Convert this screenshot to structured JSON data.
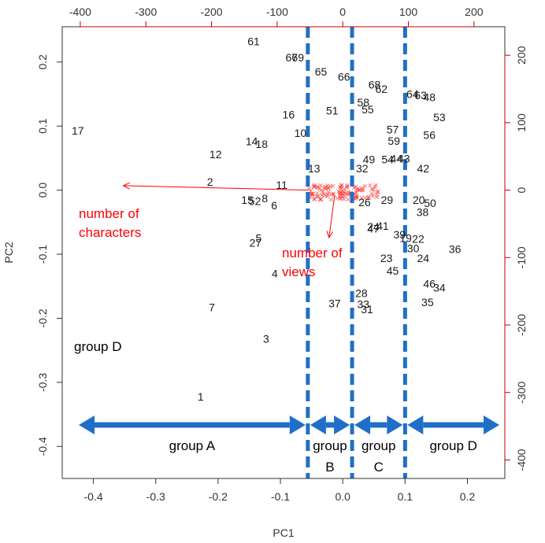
{
  "chart_data": {
    "type": "scatter",
    "title": "",
    "xlabel": "PC1",
    "ylabel": "PC2",
    "xlim": [
      -0.45,
      0.26
    ],
    "ylim": [
      -0.45,
      0.255
    ],
    "x_ticks": [
      -0.4,
      -0.3,
      -0.2,
      -0.1,
      0.0,
      0.1,
      0.2
    ],
    "x_tick_labels": [
      "-0.4",
      "-0.3",
      "-0.2",
      "-0.1",
      "0.0",
      "0.1",
      "0.2"
    ],
    "y_ticks": [
      0.2,
      0.1,
      0.0,
      -0.1,
      -0.2,
      -0.3,
      -0.4
    ],
    "y_tick_labels": [
      "0.2",
      "0.1",
      "0.0",
      "-0.1",
      "-0.2",
      "-0.3",
      "-0.4"
    ],
    "secondary_axis": {
      "scale_factor": 950,
      "ticks": [
        -400,
        -300,
        -200,
        -100,
        0,
        100,
        200
      ],
      "top_tick_labels": [
        "-400",
        "-300",
        "-200",
        "-100",
        "0",
        "100",
        "200"
      ],
      "right_ticks": [
        200,
        100,
        0,
        -100,
        -200,
        -300,
        -400
      ],
      "right_tick_labels": [
        "200",
        "100",
        "0",
        "-100",
        "-200",
        "-300",
        "-400"
      ],
      "color": "#c00000"
    },
    "point_color": "#1a1a1a",
    "points": [
      {
        "label": "61",
        "x": -0.143,
        "y": 0.232
      },
      {
        "label": "67",
        "x": -0.082,
        "y": 0.207
      },
      {
        "label": "69",
        "x": -0.072,
        "y": 0.207
      },
      {
        "label": "65",
        "x": -0.035,
        "y": 0.185
      },
      {
        "label": "66",
        "x": 0.002,
        "y": 0.177
      },
      {
        "label": "68",
        "x": 0.051,
        "y": 0.165
      },
      {
        "label": "62",
        "x": 0.062,
        "y": 0.158
      },
      {
        "label": "64",
        "x": 0.112,
        "y": 0.15
      },
      {
        "label": "63",
        "x": 0.125,
        "y": 0.148
      },
      {
        "label": "48",
        "x": 0.139,
        "y": 0.145
      },
      {
        "label": "58",
        "x": 0.033,
        "y": 0.137
      },
      {
        "label": "55",
        "x": 0.04,
        "y": 0.126
      },
      {
        "label": "51",
        "x": -0.017,
        "y": 0.124
      },
      {
        "label": "16",
        "x": -0.087,
        "y": 0.118
      },
      {
        "label": "53",
        "x": 0.155,
        "y": 0.114
      },
      {
        "label": "57",
        "x": 0.08,
        "y": 0.095
      },
      {
        "label": "56",
        "x": 0.139,
        "y": 0.086
      },
      {
        "label": "10",
        "x": -0.068,
        "y": 0.089
      },
      {
        "label": "59",
        "x": 0.082,
        "y": 0.077
      },
      {
        "label": "17",
        "x": -0.425,
        "y": 0.093
      },
      {
        "label": "14",
        "x": -0.146,
        "y": 0.076
      },
      {
        "label": "18",
        "x": -0.13,
        "y": 0.072
      },
      {
        "label": "12",
        "x": -0.204,
        "y": 0.056
      },
      {
        "label": "49",
        "x": 0.042,
        "y": 0.048
      },
      {
        "label": "54",
        "x": 0.072,
        "y": 0.048
      },
      {
        "label": "44",
        "x": 0.086,
        "y": 0.049
      },
      {
        "label": "43",
        "x": 0.098,
        "y": 0.049
      },
      {
        "label": "13",
        "x": -0.046,
        "y": 0.034
      },
      {
        "label": "32",
        "x": 0.031,
        "y": 0.034
      },
      {
        "label": "42",
        "x": 0.129,
        "y": 0.034
      },
      {
        "label": "2",
        "x": -0.213,
        "y": 0.013
      },
      {
        "label": "11",
        "x": -0.098,
        "y": 0.008
      },
      {
        "label": "26",
        "x": 0.035,
        "y": -0.019
      },
      {
        "label": "29",
        "x": 0.071,
        "y": -0.015
      },
      {
        "label": "20",
        "x": 0.122,
        "y": -0.015
      },
      {
        "label": "50",
        "x": 0.14,
        "y": -0.02
      },
      {
        "label": "15",
        "x": -0.153,
        "y": -0.015
      },
      {
        "label": "52",
        "x": -0.141,
        "y": -0.017
      },
      {
        "label": "8",
        "x": -0.125,
        "y": -0.013
      },
      {
        "label": "6",
        "x": -0.11,
        "y": -0.024
      },
      {
        "label": "38",
        "x": 0.128,
        "y": -0.034
      },
      {
        "label": "24",
        "x": 0.049,
        "y": -0.057
      },
      {
        "label": "47",
        "x": 0.049,
        "y": -0.06
      },
      {
        "label": "41",
        "x": 0.064,
        "y": -0.056
      },
      {
        "label": "39",
        "x": 0.091,
        "y": -0.069
      },
      {
        "label": "19",
        "x": 0.101,
        "y": -0.075
      },
      {
        "label": "22",
        "x": 0.121,
        "y": -0.076
      },
      {
        "label": "30",
        "x": 0.113,
        "y": -0.091
      },
      {
        "label": "5",
        "x": -0.135,
        "y": -0.075
      },
      {
        "label": "27",
        "x": -0.14,
        "y": -0.082
      },
      {
        "label": "36",
        "x": 0.18,
        "y": -0.092
      },
      {
        "label": "24",
        "x": 0.129,
        "y": -0.106
      },
      {
        "label": "23",
        "x": 0.07,
        "y": -0.106
      },
      {
        "label": "45",
        "x": 0.08,
        "y": -0.126
      },
      {
        "label": "4",
        "x": -0.109,
        "y": -0.13
      },
      {
        "label": "46",
        "x": 0.139,
        "y": -0.146
      },
      {
        "label": "34",
        "x": 0.155,
        "y": -0.152
      },
      {
        "label": "28",
        "x": 0.03,
        "y": -0.161
      },
      {
        "label": "35",
        "x": 0.136,
        "y": -0.175
      },
      {
        "label": "37",
        "x": -0.013,
        "y": -0.177
      },
      {
        "label": "33",
        "x": 0.033,
        "y": -0.178
      },
      {
        "label": "31",
        "x": 0.039,
        "y": -0.186
      },
      {
        "label": "7",
        "x": -0.21,
        "y": -0.183
      },
      {
        "label": "3",
        "x": -0.123,
        "y": -0.232
      },
      {
        "label": "1",
        "x": -0.228,
        "y": -0.322
      }
    ],
    "cluster": {
      "x_range": [
        -0.055,
        0.06
      ],
      "y_range": [
        -0.015,
        0.008
      ],
      "count": 110,
      "color": "#ff3b3b"
    },
    "loadings": [
      {
        "label": "number of characters",
        "x0": -0.055,
        "y0": 0.0,
        "x1": -0.352,
        "y1": 0.007,
        "color": "#ff0000"
      },
      {
        "label": "number of views",
        "x0": -0.013,
        "y0": -0.008,
        "x1": -0.022,
        "y1": -0.074,
        "color": "#ff0000"
      }
    ],
    "cutoffs": [
      -0.056,
      0.015,
      0.1
    ],
    "cutoff_color": "#1f6fc8",
    "groups": [
      {
        "name": "group A",
        "from": -0.445,
        "to": -0.056
      },
      {
        "name": "group B",
        "from": -0.056,
        "to": 0.015
      },
      {
        "name": "group C",
        "from": 0.015,
        "to": 0.1
      },
      {
        "name": "group D",
        "from": 0.1,
        "to": 0.255
      }
    ],
    "group_d_outlier_label": "group D"
  }
}
